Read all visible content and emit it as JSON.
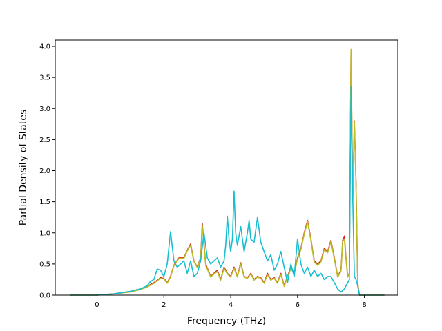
{
  "chart_data": {
    "type": "line",
    "title": "",
    "xlabel": "Frequency (THz)",
    "ylabel": "Partial Density of States",
    "xlim": [
      -1.25,
      9.0
    ],
    "ylim": [
      0.0,
      4.1
    ],
    "xticks": [
      0,
      2,
      4,
      6,
      8
    ],
    "xtick_labels": [
      "0",
      "2",
      "4",
      "6",
      "8"
    ],
    "yticks": [
      0.0,
      0.5,
      1.0,
      1.5,
      2.0,
      2.5,
      3.0,
      3.5,
      4.0
    ],
    "ytick_labels": [
      "0.0",
      "0.5",
      "1.0",
      "1.5",
      "2.0",
      "2.5",
      "3.0",
      "3.5",
      "4.0"
    ],
    "grid": false,
    "legend": false,
    "series": [
      {
        "color": "#d62728",
        "points": [
          [
            -0.8,
            0
          ],
          [
            0,
            0
          ],
          [
            0.5,
            0.02
          ],
          [
            1.0,
            0.06
          ],
          [
            1.3,
            0.1
          ],
          [
            1.5,
            0.14
          ],
          [
            1.7,
            0.2
          ],
          [
            1.9,
            0.28
          ],
          [
            2.0,
            0.27
          ],
          [
            2.1,
            0.2
          ],
          [
            2.2,
            0.3
          ],
          [
            2.3,
            0.48
          ],
          [
            2.45,
            0.6
          ],
          [
            2.6,
            0.6
          ],
          [
            2.7,
            0.72
          ],
          [
            2.8,
            0.82
          ],
          [
            2.9,
            0.55
          ],
          [
            3.0,
            0.45
          ],
          [
            3.1,
            0.6
          ],
          [
            3.15,
            1.15
          ],
          [
            3.25,
            0.5
          ],
          [
            3.4,
            0.3
          ],
          [
            3.5,
            0.35
          ],
          [
            3.6,
            0.4
          ],
          [
            3.7,
            0.25
          ],
          [
            3.8,
            0.45
          ],
          [
            3.9,
            0.35
          ],
          [
            4.0,
            0.3
          ],
          [
            4.1,
            0.45
          ],
          [
            4.2,
            0.3
          ],
          [
            4.3,
            0.52
          ],
          [
            4.4,
            0.3
          ],
          [
            4.5,
            0.28
          ],
          [
            4.6,
            0.35
          ],
          [
            4.7,
            0.25
          ],
          [
            4.8,
            0.3
          ],
          [
            4.9,
            0.28
          ],
          [
            5.0,
            0.2
          ],
          [
            5.1,
            0.35
          ],
          [
            5.2,
            0.25
          ],
          [
            5.3,
            0.28
          ],
          [
            5.4,
            0.2
          ],
          [
            5.5,
            0.35
          ],
          [
            5.6,
            0.15
          ],
          [
            5.7,
            0.3
          ],
          [
            5.8,
            0.45
          ],
          [
            5.9,
            0.35
          ],
          [
            6.0,
            0.6
          ],
          [
            6.1,
            0.75
          ],
          [
            6.2,
            1.0
          ],
          [
            6.3,
            1.2
          ],
          [
            6.4,
            0.9
          ],
          [
            6.5,
            0.55
          ],
          [
            6.6,
            0.5
          ],
          [
            6.7,
            0.55
          ],
          [
            6.8,
            0.75
          ],
          [
            6.9,
            0.7
          ],
          [
            7.0,
            0.88
          ],
          [
            7.1,
            0.6
          ],
          [
            7.2,
            0.3
          ],
          [
            7.3,
            0.4
          ],
          [
            7.35,
            0.88
          ],
          [
            7.4,
            0.95
          ],
          [
            7.45,
            0.6
          ],
          [
            7.5,
            0.3
          ],
          [
            7.55,
            0.35
          ],
          [
            7.6,
            3.95
          ],
          [
            7.65,
            1.5
          ],
          [
            7.7,
            2.8
          ],
          [
            7.75,
            1.8
          ],
          [
            7.8,
            0.2
          ],
          [
            7.85,
            0
          ],
          [
            8.6,
            0
          ]
        ]
      },
      {
        "color": "#bcbd22",
        "points": [
          [
            -0.8,
            0
          ],
          [
            0,
            0
          ],
          [
            0.5,
            0.02
          ],
          [
            1.0,
            0.05
          ],
          [
            1.3,
            0.09
          ],
          [
            1.5,
            0.13
          ],
          [
            1.7,
            0.19
          ],
          [
            1.9,
            0.27
          ],
          [
            2.0,
            0.26
          ],
          [
            2.1,
            0.19
          ],
          [
            2.2,
            0.29
          ],
          [
            2.3,
            0.47
          ],
          [
            2.45,
            0.59
          ],
          [
            2.6,
            0.59
          ],
          [
            2.7,
            0.71
          ],
          [
            2.8,
            0.8
          ],
          [
            2.9,
            0.54
          ],
          [
            3.0,
            0.44
          ],
          [
            3.1,
            0.58
          ],
          [
            3.15,
            1.12
          ],
          [
            3.25,
            0.48
          ],
          [
            3.4,
            0.29
          ],
          [
            3.5,
            0.34
          ],
          [
            3.6,
            0.38
          ],
          [
            3.7,
            0.24
          ],
          [
            3.8,
            0.43
          ],
          [
            3.9,
            0.34
          ],
          [
            4.0,
            0.29
          ],
          [
            4.1,
            0.43
          ],
          [
            4.2,
            0.29
          ],
          [
            4.3,
            0.5
          ],
          [
            4.4,
            0.29
          ],
          [
            4.5,
            0.27
          ],
          [
            4.6,
            0.34
          ],
          [
            4.7,
            0.24
          ],
          [
            4.8,
            0.29
          ],
          [
            4.9,
            0.27
          ],
          [
            5.0,
            0.19
          ],
          [
            5.1,
            0.33
          ],
          [
            5.2,
            0.24
          ],
          [
            5.3,
            0.27
          ],
          [
            5.4,
            0.19
          ],
          [
            5.5,
            0.33
          ],
          [
            5.6,
            0.14
          ],
          [
            5.7,
            0.29
          ],
          [
            5.8,
            0.43
          ],
          [
            5.9,
            0.34
          ],
          [
            6.0,
            0.58
          ],
          [
            6.1,
            0.73
          ],
          [
            6.2,
            0.98
          ],
          [
            6.3,
            1.18
          ],
          [
            6.4,
            0.88
          ],
          [
            6.5,
            0.53
          ],
          [
            6.6,
            0.48
          ],
          [
            6.7,
            0.53
          ],
          [
            6.8,
            0.73
          ],
          [
            6.9,
            0.68
          ],
          [
            7.0,
            0.86
          ],
          [
            7.1,
            0.58
          ],
          [
            7.2,
            0.29
          ],
          [
            7.3,
            0.38
          ],
          [
            7.35,
            0.86
          ],
          [
            7.4,
            0.9
          ],
          [
            7.45,
            0.58
          ],
          [
            7.5,
            0.29
          ],
          [
            7.55,
            0.34
          ],
          [
            7.6,
            3.95
          ],
          [
            7.65,
            1.48
          ],
          [
            7.7,
            2.78
          ],
          [
            7.75,
            1.78
          ],
          [
            7.8,
            0.19
          ],
          [
            7.85,
            0
          ],
          [
            8.6,
            0
          ]
        ]
      },
      {
        "color": "#17becf",
        "points": [
          [
            -0.8,
            0
          ],
          [
            0,
            0
          ],
          [
            0.5,
            0.02
          ],
          [
            1.0,
            0.06
          ],
          [
            1.3,
            0.1
          ],
          [
            1.5,
            0.15
          ],
          [
            1.6,
            0.22
          ],
          [
            1.7,
            0.25
          ],
          [
            1.8,
            0.42
          ],
          [
            1.9,
            0.4
          ],
          [
            2.0,
            0.3
          ],
          [
            2.1,
            0.5
          ],
          [
            2.2,
            1.02
          ],
          [
            2.3,
            0.55
          ],
          [
            2.4,
            0.45
          ],
          [
            2.5,
            0.5
          ],
          [
            2.6,
            0.55
          ],
          [
            2.7,
            0.35
          ],
          [
            2.8,
            0.55
          ],
          [
            2.9,
            0.3
          ],
          [
            3.0,
            0.35
          ],
          [
            3.1,
            0.55
          ],
          [
            3.2,
            1.0
          ],
          [
            3.3,
            0.6
          ],
          [
            3.4,
            0.5
          ],
          [
            3.5,
            0.55
          ],
          [
            3.6,
            0.6
          ],
          [
            3.7,
            0.45
          ],
          [
            3.8,
            0.55
          ],
          [
            3.85,
            0.8
          ],
          [
            3.9,
            1.27
          ],
          [
            3.95,
            0.9
          ],
          [
            4.0,
            0.7
          ],
          [
            4.05,
            0.9
          ],
          [
            4.1,
            1.67
          ],
          [
            4.15,
            1.0
          ],
          [
            4.2,
            0.8
          ],
          [
            4.3,
            1.1
          ],
          [
            4.4,
            0.7
          ],
          [
            4.5,
            1.0
          ],
          [
            4.55,
            1.2
          ],
          [
            4.6,
            0.9
          ],
          [
            4.7,
            0.85
          ],
          [
            4.8,
            1.25
          ],
          [
            4.9,
            0.85
          ],
          [
            5.0,
            0.7
          ],
          [
            5.1,
            0.55
          ],
          [
            5.2,
            0.65
          ],
          [
            5.3,
            0.4
          ],
          [
            5.4,
            0.5
          ],
          [
            5.5,
            0.7
          ],
          [
            5.6,
            0.45
          ],
          [
            5.7,
            0.2
          ],
          [
            5.8,
            0.5
          ],
          [
            5.9,
            0.3
          ],
          [
            6.0,
            0.9
          ],
          [
            6.1,
            0.5
          ],
          [
            6.2,
            0.35
          ],
          [
            6.3,
            0.45
          ],
          [
            6.4,
            0.3
          ],
          [
            6.5,
            0.4
          ],
          [
            6.6,
            0.3
          ],
          [
            6.7,
            0.35
          ],
          [
            6.8,
            0.25
          ],
          [
            6.9,
            0.3
          ],
          [
            7.0,
            0.3
          ],
          [
            7.1,
            0.2
          ],
          [
            7.2,
            0.1
          ],
          [
            7.3,
            0.05
          ],
          [
            7.4,
            0.1
          ],
          [
            7.5,
            0.2
          ],
          [
            7.55,
            0.25
          ],
          [
            7.6,
            3.35
          ],
          [
            7.65,
            1.6
          ],
          [
            7.7,
            0.3
          ],
          [
            7.75,
            0.25
          ],
          [
            7.8,
            0.15
          ],
          [
            7.85,
            0
          ],
          [
            8.6,
            0
          ]
        ]
      }
    ]
  }
}
